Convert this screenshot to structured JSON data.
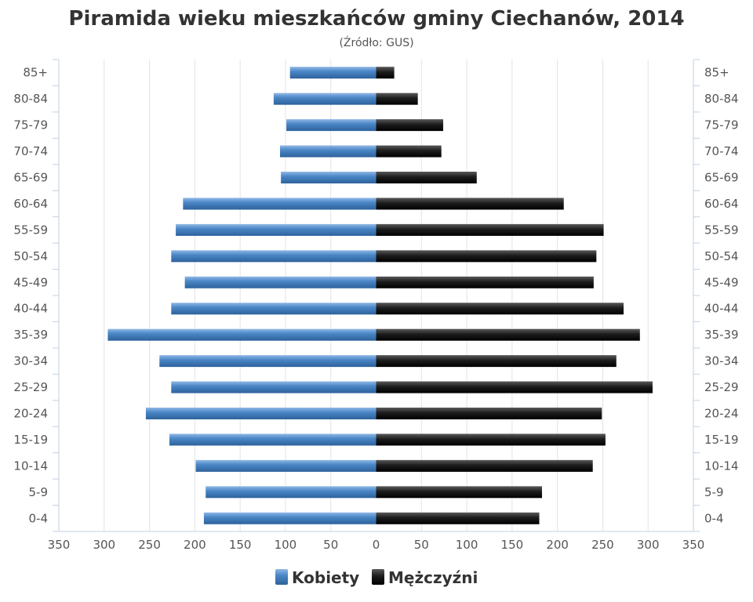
{
  "chart_data": {
    "type": "bar",
    "orientation": "horizontal",
    "layout": "population-pyramid",
    "title": "Piramida wieku mieszkańców gminy Ciechanów, 2014",
    "subtitle": "(Źródło: GUS)",
    "categories": [
      "85+",
      "80-84",
      "75-79",
      "70-74",
      "65-69",
      "60-64",
      "55-59",
      "50-54",
      "45-49",
      "40-44",
      "35-39",
      "30-34",
      "25-29",
      "20-24",
      "15-19",
      "10-14",
      "5-9",
      "0-4"
    ],
    "series": [
      {
        "name": "Kobiety",
        "color": "#4a86c6",
        "side": "left",
        "values": [
          95,
          113,
          99,
          106,
          105,
          213,
          221,
          226,
          211,
          226,
          296,
          239,
          226,
          254,
          228,
          199,
          188,
          190
        ]
      },
      {
        "name": "Mężczyźni",
        "color": "#222222",
        "side": "right",
        "values": [
          20,
          46,
          74,
          72,
          111,
          207,
          251,
          243,
          240,
          273,
          291,
          265,
          305,
          249,
          253,
          239,
          183,
          180
        ]
      }
    ],
    "xlim": [
      -350,
      350
    ],
    "xticks": [
      -350,
      -300,
      -250,
      -200,
      -150,
      -100,
      -50,
      0,
      50,
      100,
      150,
      200,
      250,
      300,
      350
    ],
    "xtick_labels": [
      "350",
      "300",
      "250",
      "200",
      "150",
      "100",
      "50",
      "0",
      "50",
      "100",
      "150",
      "200",
      "250",
      "300",
      "350"
    ],
    "grid": true,
    "legend": "bottom-center"
  }
}
